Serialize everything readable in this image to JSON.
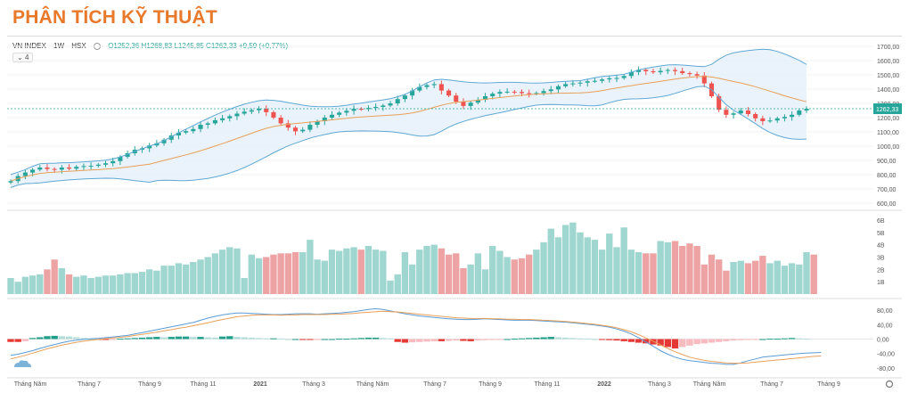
{
  "page": {
    "title": "PHÂN TÍCH KỸ THUẬT"
  },
  "legend": {
    "symbol": "VN INDEX",
    "interval": "1W",
    "exchange": "HSX",
    "ohlc": "O1252,36 H1268,83 L1245,85 C1262,33 +9,59 (+0,77%)",
    "collapse": "4"
  },
  "colors": {
    "up": "#26a69a",
    "down": "#ef5350",
    "up_vol": "#9fd6cf",
    "down_vol": "#eda3a3",
    "band": "#5fa8d3",
    "ma": "#e8a05a"
  },
  "chart_data": [
    {
      "type": "candlestick",
      "title": "",
      "ylim": [
        600,
        1700
      ],
      "y_ticks": [
        "1700,00",
        "1600,00",
        "1500,00",
        "1400,00",
        "1300,00",
        "1200,00",
        "1100,00",
        "1000,00",
        "900,00",
        "800,00",
        "700,00",
        "600,00"
      ],
      "last_price_label": "1262,33",
      "indicators": [
        "Bollinger Bands",
        "Moving Average"
      ],
      "series": [
        {
          "name": "",
          "values": [
            755,
            790,
            815,
            835,
            850,
            840,
            835,
            850,
            842,
            855,
            860,
            862,
            870,
            880,
            895,
            925,
            950,
            975,
            985,
            1005,
            1020,
            1045,
            1075,
            1095,
            1105,
            1120,
            1150,
            1160,
            1182,
            1195,
            1210,
            1228,
            1242,
            1252,
            1262,
            1238,
            1200,
            1160,
            1130,
            1104,
            1115,
            1150,
            1175,
            1200,
            1220,
            1235,
            1248,
            1262,
            1260,
            1268,
            1275,
            1285,
            1300,
            1330,
            1355,
            1390,
            1415,
            1428,
            1435,
            1390,
            1355,
            1312,
            1282,
            1305,
            1325,
            1350,
            1368,
            1380,
            1382,
            1380,
            1372,
            1368,
            1372,
            1386,
            1398,
            1420,
            1435,
            1440,
            1445,
            1455,
            1458,
            1468,
            1476,
            1478,
            1492,
            1520,
            1535,
            1525,
            1518,
            1528,
            1534,
            1526,
            1512,
            1505,
            1495,
            1440,
            1350,
            1255,
            1220,
            1230,
            1250,
            1225,
            1195,
            1175,
            1180,
            1195,
            1205,
            1220,
            1250,
            1262
          ]
        }
      ]
    },
    {
      "type": "bar",
      "title": "Volume",
      "y_ticks": [
        "6B",
        "5B",
        "4B",
        "3B",
        "2B",
        "1B"
      ],
      "values": [
        1.3,
        1.0,
        1.4,
        1.5,
        1.6,
        2.0,
        2.8,
        2.1,
        1.6,
        1.4,
        1.5,
        1.3,
        1.4,
        1.5,
        1.5,
        1.6,
        1.7,
        1.7,
        1.8,
        2.0,
        1.9,
        2.3,
        2.3,
        2.5,
        2.4,
        2.6,
        2.8,
        3.0,
        3.3,
        3.6,
        3.8,
        3.7,
        1.3,
        3.2,
        2.9,
        3.0,
        3.2,
        3.3,
        3.3,
        3.4,
        3.4,
        4.4,
        2.8,
        2.7,
        3.6,
        3.5,
        3.7,
        3.8,
        3.6,
        3.9,
        3.6,
        3.5,
        1.1,
        1.6,
        3.4,
        2.4,
        3.6,
        3.9,
        4.0,
        3.7,
        3.2,
        3.3,
        2.1,
        2.4,
        3.3,
        2.0,
        3.9,
        3.5,
        3.0,
        2.8,
        2.9,
        3.2,
        3.6,
        4.2,
        5.3,
        4.6,
        5.6,
        5.8,
        5.0,
        4.6,
        4.4,
        3.6,
        4.9,
        3.8,
        5.4,
        3.6,
        3.4,
        3.3,
        3.3,
        4.3,
        4.2,
        4.3,
        3.9,
        4.1,
        3.9,
        2.4,
        3.2,
        2.8,
        1.9,
        2.6,
        2.7,
        2.5,
        2.7,
        3.1,
        2.5,
        2.7,
        2.3,
        2.5,
        2.4,
        3.4,
        3.2
      ]
    },
    {
      "type": "bar",
      "title": "MACD",
      "y_ticks": [
        "80,00",
        "40,00",
        "0,00",
        "-40,00",
        "-80,00"
      ],
      "x_tick_labels": [
        "Tháng Năm",
        "Tháng 7",
        "Tháng 9",
        "Tháng 11",
        "2021",
        "Tháng 3",
        "Tháng Năm",
        "Tháng 7",
        "Tháng 9",
        "Tháng 11",
        "2022",
        "Tháng 3",
        "Tháng Năm",
        "Tháng 7",
        "Tháng 9"
      ],
      "values": [
        -8,
        -8,
        -6,
        3,
        5,
        8,
        9,
        8,
        7,
        5,
        3,
        0,
        -2,
        -2,
        -1,
        1,
        2,
        3,
        4,
        5,
        6,
        5,
        6,
        7,
        7,
        6,
        6,
        5,
        4,
        7,
        8,
        6,
        5,
        4,
        3,
        2,
        2,
        1,
        0,
        0,
        -2,
        -2,
        -1,
        0,
        0,
        1,
        1,
        2,
        3,
        4,
        4,
        3,
        2,
        -8,
        -10,
        -9,
        -8,
        -7,
        -6,
        -6,
        -5,
        -4,
        -5,
        -6,
        -4,
        -3,
        -2,
        -1,
        0,
        1,
        2,
        3,
        4,
        5,
        6,
        5,
        4,
        3,
        2,
        1,
        0,
        -2,
        -3,
        -4,
        -6,
        -8,
        -10,
        -12,
        -15,
        -18,
        -22,
        -26,
        -22,
        -18,
        -14,
        -12,
        -10,
        -8,
        -6,
        -4,
        -3,
        -2,
        -1,
        0,
        1,
        1,
        2,
        3,
        2,
        1
      ],
      "macd_line": [
        -45,
        -42,
        -37,
        -32,
        -26,
        -20,
        -15,
        -10,
        -6,
        -3,
        -1,
        1,
        2,
        4,
        6,
        8,
        10,
        14,
        18,
        22,
        26,
        30,
        34,
        38,
        42,
        46,
        52,
        58,
        63,
        67,
        70,
        72,
        72,
        71,
        70,
        69,
        68,
        68,
        69,
        70,
        70,
        70,
        69,
        70,
        71,
        72,
        74,
        76,
        79,
        82,
        84,
        82,
        78,
        74,
        70,
        67,
        64,
        62,
        60,
        58,
        56,
        55,
        54,
        54,
        55,
        56,
        55,
        54,
        53,
        52,
        52,
        52,
        51,
        50,
        49,
        48,
        47,
        45,
        43,
        41,
        39,
        36,
        33,
        28,
        22,
        14,
        4,
        -8,
        -20,
        -32,
        -42,
        -50,
        -56,
        -60,
        -62,
        -65,
        -67,
        -68,
        -70,
        -70,
        -66,
        -60,
        -55,
        -50,
        -48,
        -46,
        -44,
        -42,
        -40,
        -39,
        -38,
        -37
      ],
      "signal_line": [
        -55,
        -50,
        -45,
        -39,
        -33,
        -27,
        -22,
        -17,
        -13,
        -9,
        -6,
        -3,
        -1,
        1,
        3,
        5,
        7,
        10,
        13,
        16,
        19,
        23,
        26,
        30,
        33,
        37,
        41,
        45,
        50,
        54,
        58,
        62,
        64,
        66,
        67,
        67,
        67,
        66,
        67,
        67,
        68,
        68,
        68,
        68,
        69,
        69,
        70,
        71,
        73,
        74,
        76,
        77,
        76,
        75,
        73,
        71,
        69,
        67,
        65,
        63,
        61,
        59,
        58,
        57,
        57,
        57,
        56,
        56,
        55,
        55,
        54,
        54,
        53,
        52,
        51,
        50,
        49,
        47,
        45,
        43,
        41,
        38,
        35,
        31,
        26,
        20,
        12,
        3,
        -6,
        -16,
        -26,
        -35,
        -43,
        -50,
        -55,
        -59,
        -62,
        -64,
        -66,
        -67,
        -67,
        -66,
        -64,
        -62,
        -60,
        -58,
        -56,
        -54,
        -52,
        -50,
        -48,
        -47
      ]
    }
  ]
}
